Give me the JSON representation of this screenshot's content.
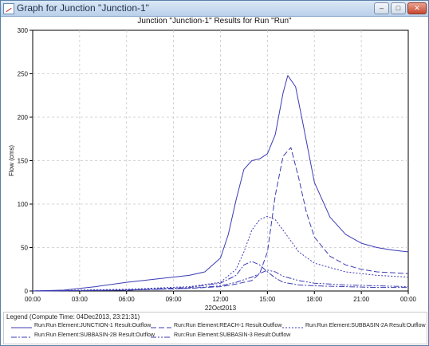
{
  "window": {
    "title": "Graph for Junction \"Junction-1\"",
    "buttons": {
      "minimize": "–",
      "maximize": "□",
      "close": "✕"
    }
  },
  "chart_data": {
    "type": "line",
    "title": "Junction \"Junction-1\" Results for Run \"Run\"",
    "ylabel": "Flow (cms)",
    "xlabel": "22Oct2013",
    "ylim": [
      0,
      300
    ],
    "xlim": [
      0,
      24
    ],
    "grid": true,
    "y_ticks": [
      "0",
      "50",
      "100",
      "150",
      "200",
      "250",
      "300"
    ],
    "x_ticks": [
      "00:00",
      "03:00",
      "06:00",
      "09:00",
      "12:00",
      "15:00",
      "18:00",
      "21:00",
      "00:00"
    ],
    "legend_title": "Legend (Compute Time: 04Dec2013, 23:21:31)",
    "series": [
      {
        "name": "Run:Run Element:JUNCTION-1 Result:Outflow",
        "color": "#3b3bb5",
        "style": "solid",
        "x": [
          0,
          2,
          4,
          6,
          8,
          10,
          11,
          12,
          12.5,
          13,
          13.5,
          14,
          14.5,
          15,
          15.5,
          16,
          16.3,
          16.8,
          17.3,
          18,
          19,
          20,
          21,
          22,
          23,
          24
        ],
        "y": [
          0,
          1,
          5,
          10,
          14,
          18,
          22,
          38,
          65,
          105,
          140,
          150,
          152,
          158,
          180,
          228,
          248,
          235,
          190,
          125,
          85,
          65,
          55,
          50,
          47,
          45
        ]
      },
      {
        "name": "Run:Run Element:REACH-1 Result:Outflow",
        "color": "#3b3bb5",
        "style": "dash",
        "x": [
          0,
          6,
          10,
          12,
          13,
          14,
          14.5,
          15,
          15.5,
          16,
          16.5,
          17,
          17.5,
          18,
          19,
          20,
          21,
          22,
          24
        ],
        "y": [
          0,
          1,
          3,
          5,
          8,
          12,
          20,
          45,
          110,
          155,
          165,
          130,
          90,
          62,
          40,
          30,
          25,
          22,
          20
        ]
      },
      {
        "name": "Run:Run Element:SUBBASIN-2A Result:Outflow",
        "color": "#3b3bb5",
        "style": "dot",
        "x": [
          0,
          6,
          10,
          12,
          13,
          13.5,
          14,
          14.5,
          15,
          15.5,
          16,
          17,
          18,
          20,
          22,
          24
        ],
        "y": [
          0,
          2,
          5,
          10,
          25,
          45,
          70,
          82,
          86,
          82,
          70,
          45,
          32,
          22,
          18,
          16
        ]
      },
      {
        "name": "Run:Run Element:SUBBASIN-2B Result:Outflow",
        "color": "#3b3bb5",
        "style": "dashdot",
        "x": [
          0,
          6,
          10,
          12,
          13,
          13.5,
          14,
          14.5,
          15,
          15.5,
          16,
          17,
          18,
          20,
          22,
          24
        ],
        "y": [
          0,
          1,
          4,
          9,
          18,
          30,
          34,
          30,
          22,
          15,
          10,
          7,
          6,
          5,
          4,
          4
        ]
      },
      {
        "name": "Run:Run Element:SUBBASIN-3 Result:Outflow",
        "color": "#3b3bb5",
        "style": "dashdotdot",
        "x": [
          0,
          6,
          10,
          12,
          13,
          14,
          14.5,
          15,
          15.5,
          16,
          17,
          18,
          20,
          22,
          24
        ],
        "y": [
          0,
          1,
          3,
          6,
          10,
          16,
          20,
          24,
          22,
          17,
          12,
          9,
          7,
          6,
          5
        ]
      }
    ]
  }
}
